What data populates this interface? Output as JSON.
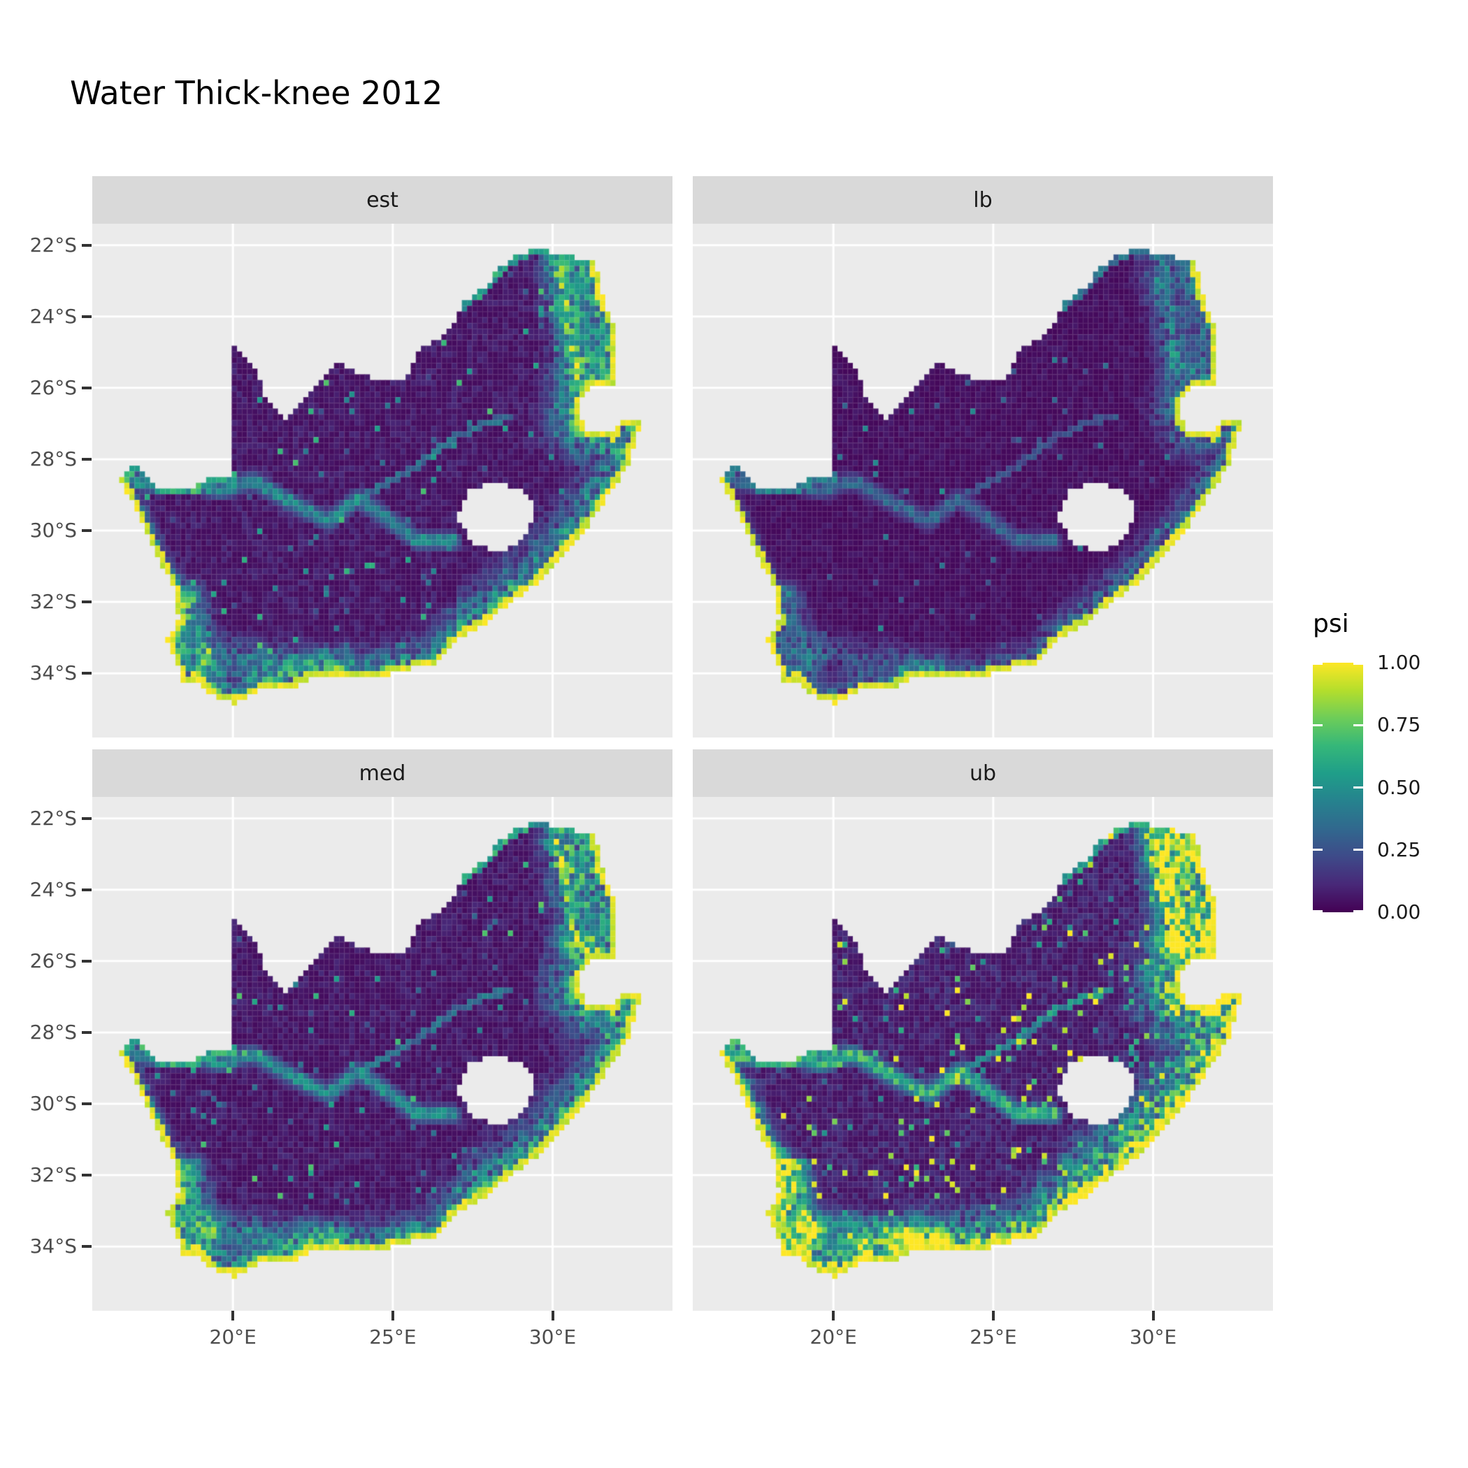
{
  "title": "Water Thick-knee 2012",
  "legend": {
    "title": "psi",
    "ticks": [
      {
        "value": 1.0,
        "label": "1.00"
      },
      {
        "value": 0.75,
        "label": "0.75"
      },
      {
        "value": 0.5,
        "label": "0.50"
      },
      {
        "value": 0.25,
        "label": "0.25"
      },
      {
        "value": 0.0,
        "label": "0.00"
      }
    ]
  },
  "facets": [
    {
      "label": "est",
      "relative_intensity": "moderate",
      "intensity_factor": 1.0,
      "band_width_factor": 1.0,
      "speckle_rate": 0.028,
      "seed": 11
    },
    {
      "label": "lb",
      "relative_intensity": "lowest",
      "intensity_factor": 0.68,
      "band_width_factor": 0.78,
      "speckle_rate": 0.015,
      "seed": 23
    },
    {
      "label": "med",
      "relative_intensity": "moderate",
      "intensity_factor": 1.03,
      "band_width_factor": 1.02,
      "speckle_rate": 0.03,
      "seed": 37
    },
    {
      "label": "ub",
      "relative_intensity": "highest",
      "intensity_factor": 1.42,
      "band_width_factor": 1.3,
      "speckle_rate": 0.05,
      "seed": 51
    }
  ],
  "axes": {
    "x": {
      "ticks": [
        {
          "value": 20,
          "label": "20°E"
        },
        {
          "value": 25,
          "label": "25°E"
        },
        {
          "value": 30,
          "label": "30°E"
        }
      ]
    },
    "y": {
      "ticks": [
        {
          "value": -22,
          "label": "22°S"
        },
        {
          "value": -24,
          "label": "24°S"
        },
        {
          "value": -26,
          "label": "26°S"
        },
        {
          "value": -28,
          "label": "28°S"
        },
        {
          "value": -30,
          "label": "30°S"
        },
        {
          "value": -32,
          "label": "32°S"
        },
        {
          "value": -34,
          "label": "34°S"
        }
      ]
    }
  },
  "colors": {
    "panel_bg": "#EBEBEB",
    "strip_bg": "#D9D9D9",
    "gridline": "#FFFFFF",
    "axis_text": "#4D4D4D",
    "tick_mark": "#333333",
    "strip_text": "#1A1A1A",
    "title_text": "#000000",
    "viridis": [
      [
        0,
        "#440154"
      ],
      [
        0.111,
        "#482878"
      ],
      [
        0.222,
        "#3E4A89"
      ],
      [
        0.333,
        "#31688E"
      ],
      [
        0.444,
        "#26828E"
      ],
      [
        0.556,
        "#1F9E89"
      ],
      [
        0.667,
        "#35B779"
      ],
      [
        0.778,
        "#6DCD59"
      ],
      [
        0.889,
        "#B4DE2C"
      ],
      [
        1,
        "#FDE725"
      ]
    ]
  },
  "chart_data": {
    "type": "heatmap",
    "subtype": "faceted raster occupancy map (ggplot2 style)",
    "title": "Water Thick-knee 2012",
    "region": "South Africa (Lesotho and Eswatini shown as no-data holes)",
    "variable": "psi",
    "value_range": [
      0,
      1
    ],
    "facets": [
      "est",
      "lb",
      "med",
      "ub"
    ],
    "x_ticks": [
      "20°E",
      "25°E",
      "30°E"
    ],
    "y_ticks": [
      "22°S",
      "24°S",
      "26°S",
      "28°S",
      "30°S",
      "32°S",
      "34°S"
    ],
    "legend_ticks": [
      "1.00",
      "0.75",
      "0.50",
      "0.25",
      "0.00"
    ],
    "legend_position": "right",
    "grid": "white major gridlines on grey panel",
    "x_range": [
      15.6,
      33.75
    ],
    "y_range": [
      -35.8,
      -21.4
    ],
    "cell_size_deg": 0.16,
    "spatial_pattern": "psi near 0 over the dry interior; high psi (0.5-1.0, green to yellow) along the coastline fringe, the Cape fold mountains in the southwest, the eastern escarpment and northeast lowveld; the Orange and Vaal rivers appear as teal lines; ub facet brightest, lb darkest",
    "map_outline": {
      "outer": [
        [
          16.45,
          -28.6
        ],
        [
          16.8,
          -28.3
        ],
        [
          16.95,
          -28.05
        ],
        [
          17.2,
          -28.4
        ],
        [
          17.6,
          -28.75
        ],
        [
          18.2,
          -28.9
        ],
        [
          18.8,
          -28.8
        ],
        [
          19.4,
          -28.5
        ],
        [
          19.98,
          -28.45
        ],
        [
          19.98,
          -24.75
        ],
        [
          20.35,
          -25.05
        ],
        [
          20.65,
          -25.45
        ],
        [
          20.85,
          -25.85
        ],
        [
          20.9,
          -26.25
        ],
        [
          21.65,
          -26.85
        ],
        [
          22.2,
          -26.4
        ],
        [
          22.85,
          -25.75
        ],
        [
          23.3,
          -25.3
        ],
        [
          24.0,
          -25.65
        ],
        [
          24.75,
          -25.8
        ],
        [
          25.45,
          -25.7
        ],
        [
          25.85,
          -24.9
        ],
        [
          26.4,
          -24.65
        ],
        [
          26.85,
          -24.25
        ],
        [
          27.15,
          -23.65
        ],
        [
          27.95,
          -23.15
        ],
        [
          28.35,
          -22.6
        ],
        [
          29.05,
          -22.2
        ],
        [
          29.7,
          -22.15
        ],
        [
          30.4,
          -22.3
        ],
        [
          31.3,
          -22.4
        ],
        [
          31.6,
          -23.6
        ],
        [
          31.95,
          -24.3
        ],
        [
          31.9,
          -25.5
        ],
        [
          31.95,
          -25.95
        ],
        [
          31.3,
          -25.9
        ],
        [
          30.9,
          -26.3
        ],
        [
          30.8,
          -26.8
        ],
        [
          31.1,
          -27.2
        ],
        [
          31.95,
          -27.3
        ],
        [
          32.1,
          -26.85
        ],
        [
          32.85,
          -26.85
        ],
        [
          32.55,
          -27.55
        ],
        [
          32.35,
          -28.2
        ],
        [
          31.8,
          -28.95
        ],
        [
          31.05,
          -29.9
        ],
        [
          30.3,
          -30.7
        ],
        [
          29.5,
          -31.45
        ],
        [
          28.6,
          -32.05
        ],
        [
          27.9,
          -32.6
        ],
        [
          27.0,
          -33.05
        ],
        [
          26.4,
          -33.7
        ],
        [
          25.65,
          -33.85
        ],
        [
          25.0,
          -34.0
        ],
        [
          24.2,
          -34.1
        ],
        [
          23.4,
          -34.1
        ],
        [
          22.55,
          -34.05
        ],
        [
          21.9,
          -34.4
        ],
        [
          20.9,
          -34.45
        ],
        [
          20.0,
          -34.85
        ],
        [
          19.3,
          -34.6
        ],
        [
          18.85,
          -34.15
        ],
        [
          18.45,
          -34.35
        ],
        [
          18.3,
          -33.9
        ],
        [
          17.95,
          -33.05
        ],
        [
          18.3,
          -32.55
        ],
        [
          18.2,
          -31.7
        ],
        [
          17.55,
          -30.55
        ],
        [
          17.05,
          -29.55
        ]
      ],
      "lesotho_hole": [
        [
          27.0,
          -29.6
        ],
        [
          27.35,
          -28.9
        ],
        [
          28.1,
          -28.6
        ],
        [
          29.1,
          -28.9
        ],
        [
          29.45,
          -29.3
        ],
        [
          29.2,
          -30.1
        ],
        [
          28.4,
          -30.65
        ],
        [
          27.55,
          -30.4
        ]
      ],
      "coast_segs": [
        30,
        68
      ],
      "orange_border_segs": [
        0,
        7
      ],
      "limpopo_border_segs": [
        24,
        29
      ]
    },
    "rivers": {
      "orange": [
        [
          16.55,
          -28.55
        ],
        [
          17.6,
          -28.75
        ],
        [
          18.6,
          -28.6
        ],
        [
          19.6,
          -28.9
        ],
        [
          20.6,
          -28.6
        ],
        [
          21.4,
          -29.0
        ],
        [
          22.2,
          -29.4
        ],
        [
          23.0,
          -29.75
        ],
        [
          23.9,
          -29.1
        ],
        [
          24.8,
          -29.65
        ],
        [
          25.8,
          -30.3
        ],
        [
          26.9,
          -30.3
        ]
      ],
      "vaal": [
        [
          23.9,
          -29.1
        ],
        [
          24.9,
          -28.6
        ],
        [
          25.9,
          -28.1
        ],
        [
          26.9,
          -27.4
        ],
        [
          27.9,
          -27.0
        ],
        [
          28.7,
          -26.8
        ]
      ]
    },
    "features": {
      "escarpment": {
        "a": [
          30.15,
          -22.6
        ],
        "b": [
          30.75,
          -25.35
        ],
        "width": 1.15,
        "strength": 0.9
      },
      "cape_fold_south": {
        "a": [
          18.75,
          -33.35
        ],
        "b": [
          23.2,
          -33.85
        ],
        "width": 0.75,
        "strength": 0.55
      },
      "cape_fold_west": {
        "a": [
          18.6,
          -31.8
        ],
        "b": [
          19.3,
          -33.6
        ],
        "width": 0.7,
        "strength": 0.55
      }
    }
  }
}
